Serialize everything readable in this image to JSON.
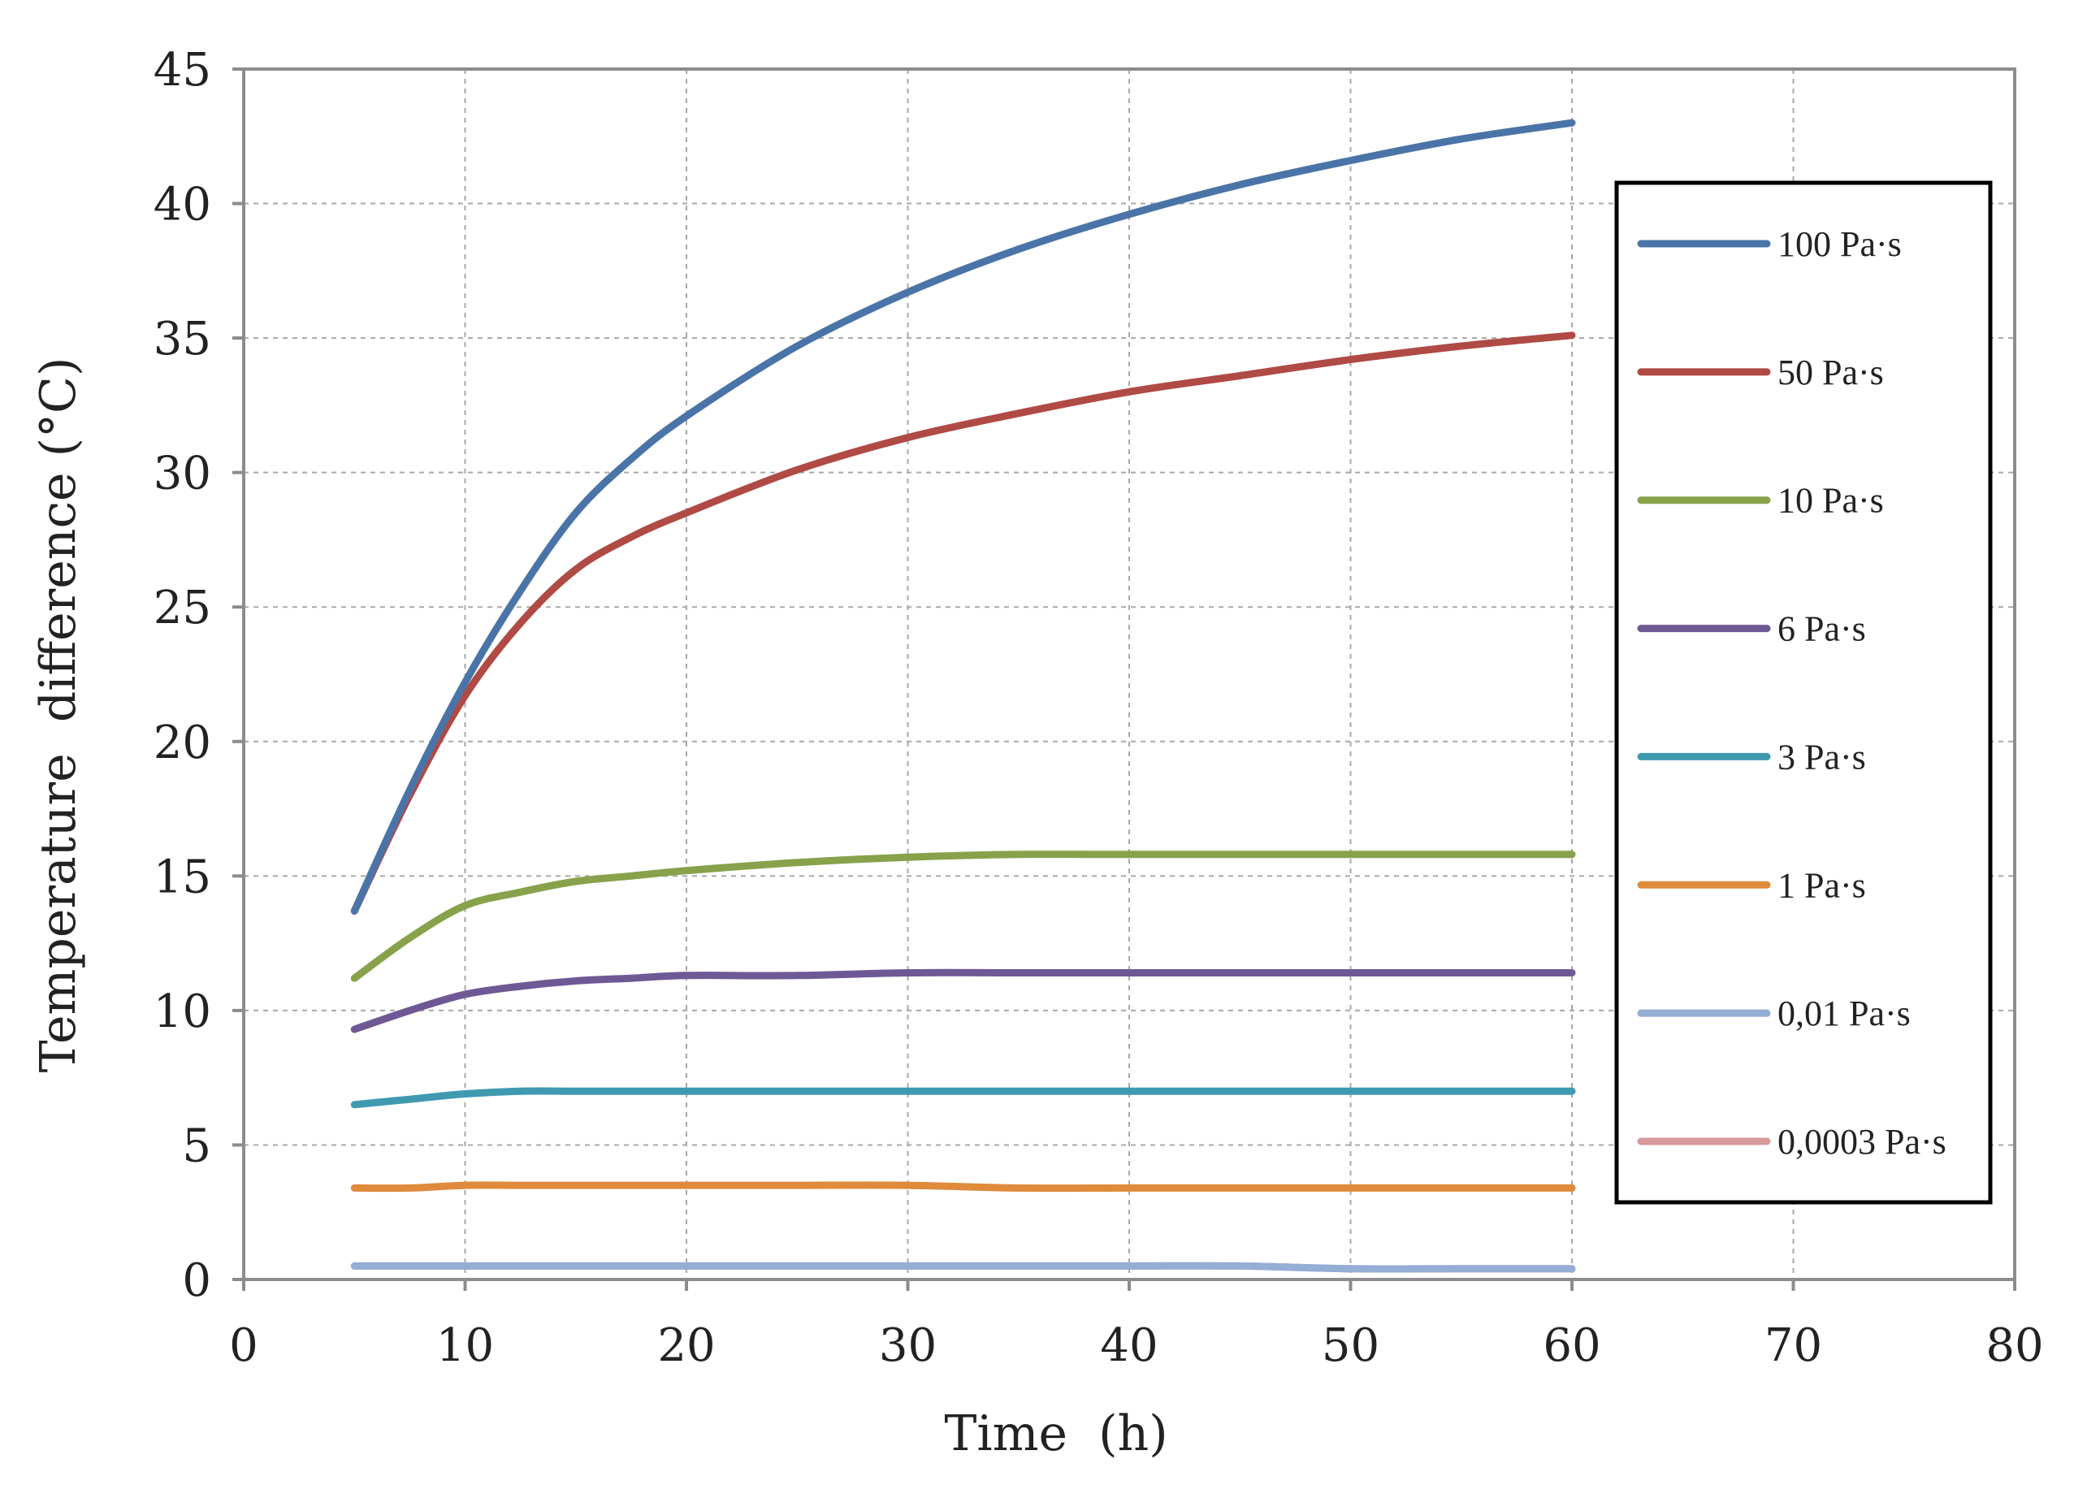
{
  "chart_data": {
    "type": "line",
    "title": "",
    "xlabel": "Time  (h)",
    "ylabel": "Temperature  difference (°C)",
    "xlim": [
      0,
      80
    ],
    "ylim": [
      0,
      45
    ],
    "xticks": [
      0,
      10,
      20,
      30,
      40,
      50,
      60,
      70,
      80
    ],
    "yticks": [
      0,
      5,
      10,
      15,
      20,
      25,
      30,
      35,
      40,
      45
    ],
    "grid": true,
    "legend_position": "right",
    "x": [
      5,
      7.5,
      10,
      12.5,
      15,
      17.5,
      20,
      25,
      30,
      35,
      40,
      45,
      50,
      55,
      60
    ],
    "series": [
      {
        "name": "100 Pa·s",
        "color": "#4a74a8",
        "values": [
          13.7,
          18.2,
          22.2,
          25.6,
          28.5,
          30.5,
          32.1,
          34.7,
          36.7,
          38.3,
          39.6,
          40.7,
          41.6,
          42.4,
          43.0
        ]
      },
      {
        "name": "50 Pa·s",
        "color": "#b04a45",
        "values": [
          13.7,
          18.0,
          21.7,
          24.4,
          26.4,
          27.6,
          28.5,
          30.1,
          31.3,
          32.2,
          33.0,
          33.6,
          34.2,
          34.7,
          35.1
        ]
      },
      {
        "name": "10 Pa·s",
        "color": "#87a24b",
        "values": [
          11.2,
          12.7,
          13.9,
          14.4,
          14.8,
          15.0,
          15.2,
          15.5,
          15.7,
          15.8,
          15.8,
          15.8,
          15.8,
          15.8,
          15.8
        ]
      },
      {
        "name": "6 Pa·s",
        "color": "#6f5995",
        "values": [
          9.3,
          10.0,
          10.6,
          10.9,
          11.1,
          11.2,
          11.3,
          11.3,
          11.4,
          11.4,
          11.4,
          11.4,
          11.4,
          11.4,
          11.4
        ]
      },
      {
        "name": "3 Pa·s",
        "color": "#3f9ab0",
        "values": [
          6.5,
          6.7,
          6.9,
          7.0,
          7.0,
          7.0,
          7.0,
          7.0,
          7.0,
          7.0,
          7.0,
          7.0,
          7.0,
          7.0,
          7.0
        ]
      },
      {
        "name": "1 Pa·s",
        "color": "#e08a3c",
        "values": [
          3.4,
          3.4,
          3.5,
          3.5,
          3.5,
          3.5,
          3.5,
          3.5,
          3.5,
          3.4,
          3.4,
          3.4,
          3.4,
          3.4,
          3.4
        ]
      },
      {
        "name": "0,01 Pa·s",
        "color": "#94aed5",
        "values": [
          0.5,
          0.5,
          0.5,
          0.5,
          0.5,
          0.5,
          0.5,
          0.5,
          0.5,
          0.5,
          0.5,
          0.5,
          0.4,
          0.4,
          0.4
        ]
      },
      {
        "name": "0,0003 Pa·s",
        "color": "#d6999a",
        "values": [
          0.5,
          0.5,
          0.5,
          0.5,
          0.5,
          0.5,
          0.5,
          0.5,
          0.5,
          0.5,
          0.5,
          0.5,
          0.4,
          0.4,
          0.4
        ]
      }
    ]
  }
}
